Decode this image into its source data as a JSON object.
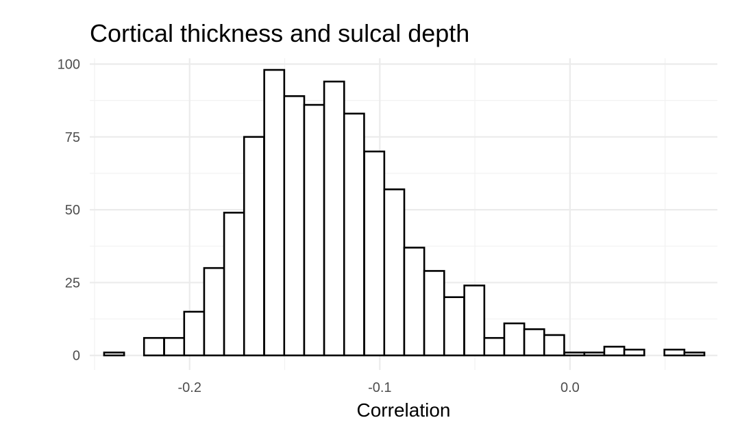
{
  "chart_data": {
    "type": "bar",
    "subtype": "histogram",
    "title": "Cortical thickness and sulcal depth",
    "xlabel": "Correlation",
    "ylabel": "",
    "xlim": [
      -0.2525,
      0.0775
    ],
    "ylim": [
      -5,
      102
    ],
    "x_major_ticks": [
      -0.2,
      -0.1,
      0.0
    ],
    "x_tick_labels": [
      "-0.2",
      "-0.1",
      "0.0"
    ],
    "x_minor_ticks": [
      -0.25,
      -0.15,
      -0.05,
      0.05
    ],
    "y_major_ticks": [
      0,
      25,
      50,
      75,
      100
    ],
    "y_tick_labels": [
      "0",
      "25",
      "50",
      "75",
      "100"
    ],
    "y_minor_ticks": [
      12.5,
      37.5,
      62.5,
      87.5
    ],
    "grid": true,
    "legend": "none",
    "bin_width": 0.010517,
    "bin_centers": [
      -0.2397,
      -0.2292,
      -0.2187,
      -0.2081,
      -0.1976,
      -0.1871,
      -0.1766,
      -0.1661,
      -0.1555,
      -0.145,
      -0.1345,
      -0.124,
      -0.1135,
      -0.1029,
      -0.0924,
      -0.0819,
      -0.0714,
      -0.0609,
      -0.0503,
      -0.0398,
      -0.0293,
      -0.0188,
      -0.0083,
      0.0023,
      0.0128,
      0.0233,
      0.0338,
      0.0443,
      0.0549,
      0.0654
    ],
    "counts": [
      1,
      0,
      6,
      6,
      15,
      30,
      49,
      75,
      98,
      89,
      86,
      94,
      83,
      70,
      57,
      37,
      29,
      20,
      24,
      6,
      11,
      9,
      7,
      1,
      1,
      3,
      2,
      0,
      2,
      1
    ],
    "colors": {
      "bar_fill": "#ffffff",
      "bar_outline": "#000000",
      "grid": "#ebebeb",
      "tick_text": "#4d4d4d"
    }
  }
}
